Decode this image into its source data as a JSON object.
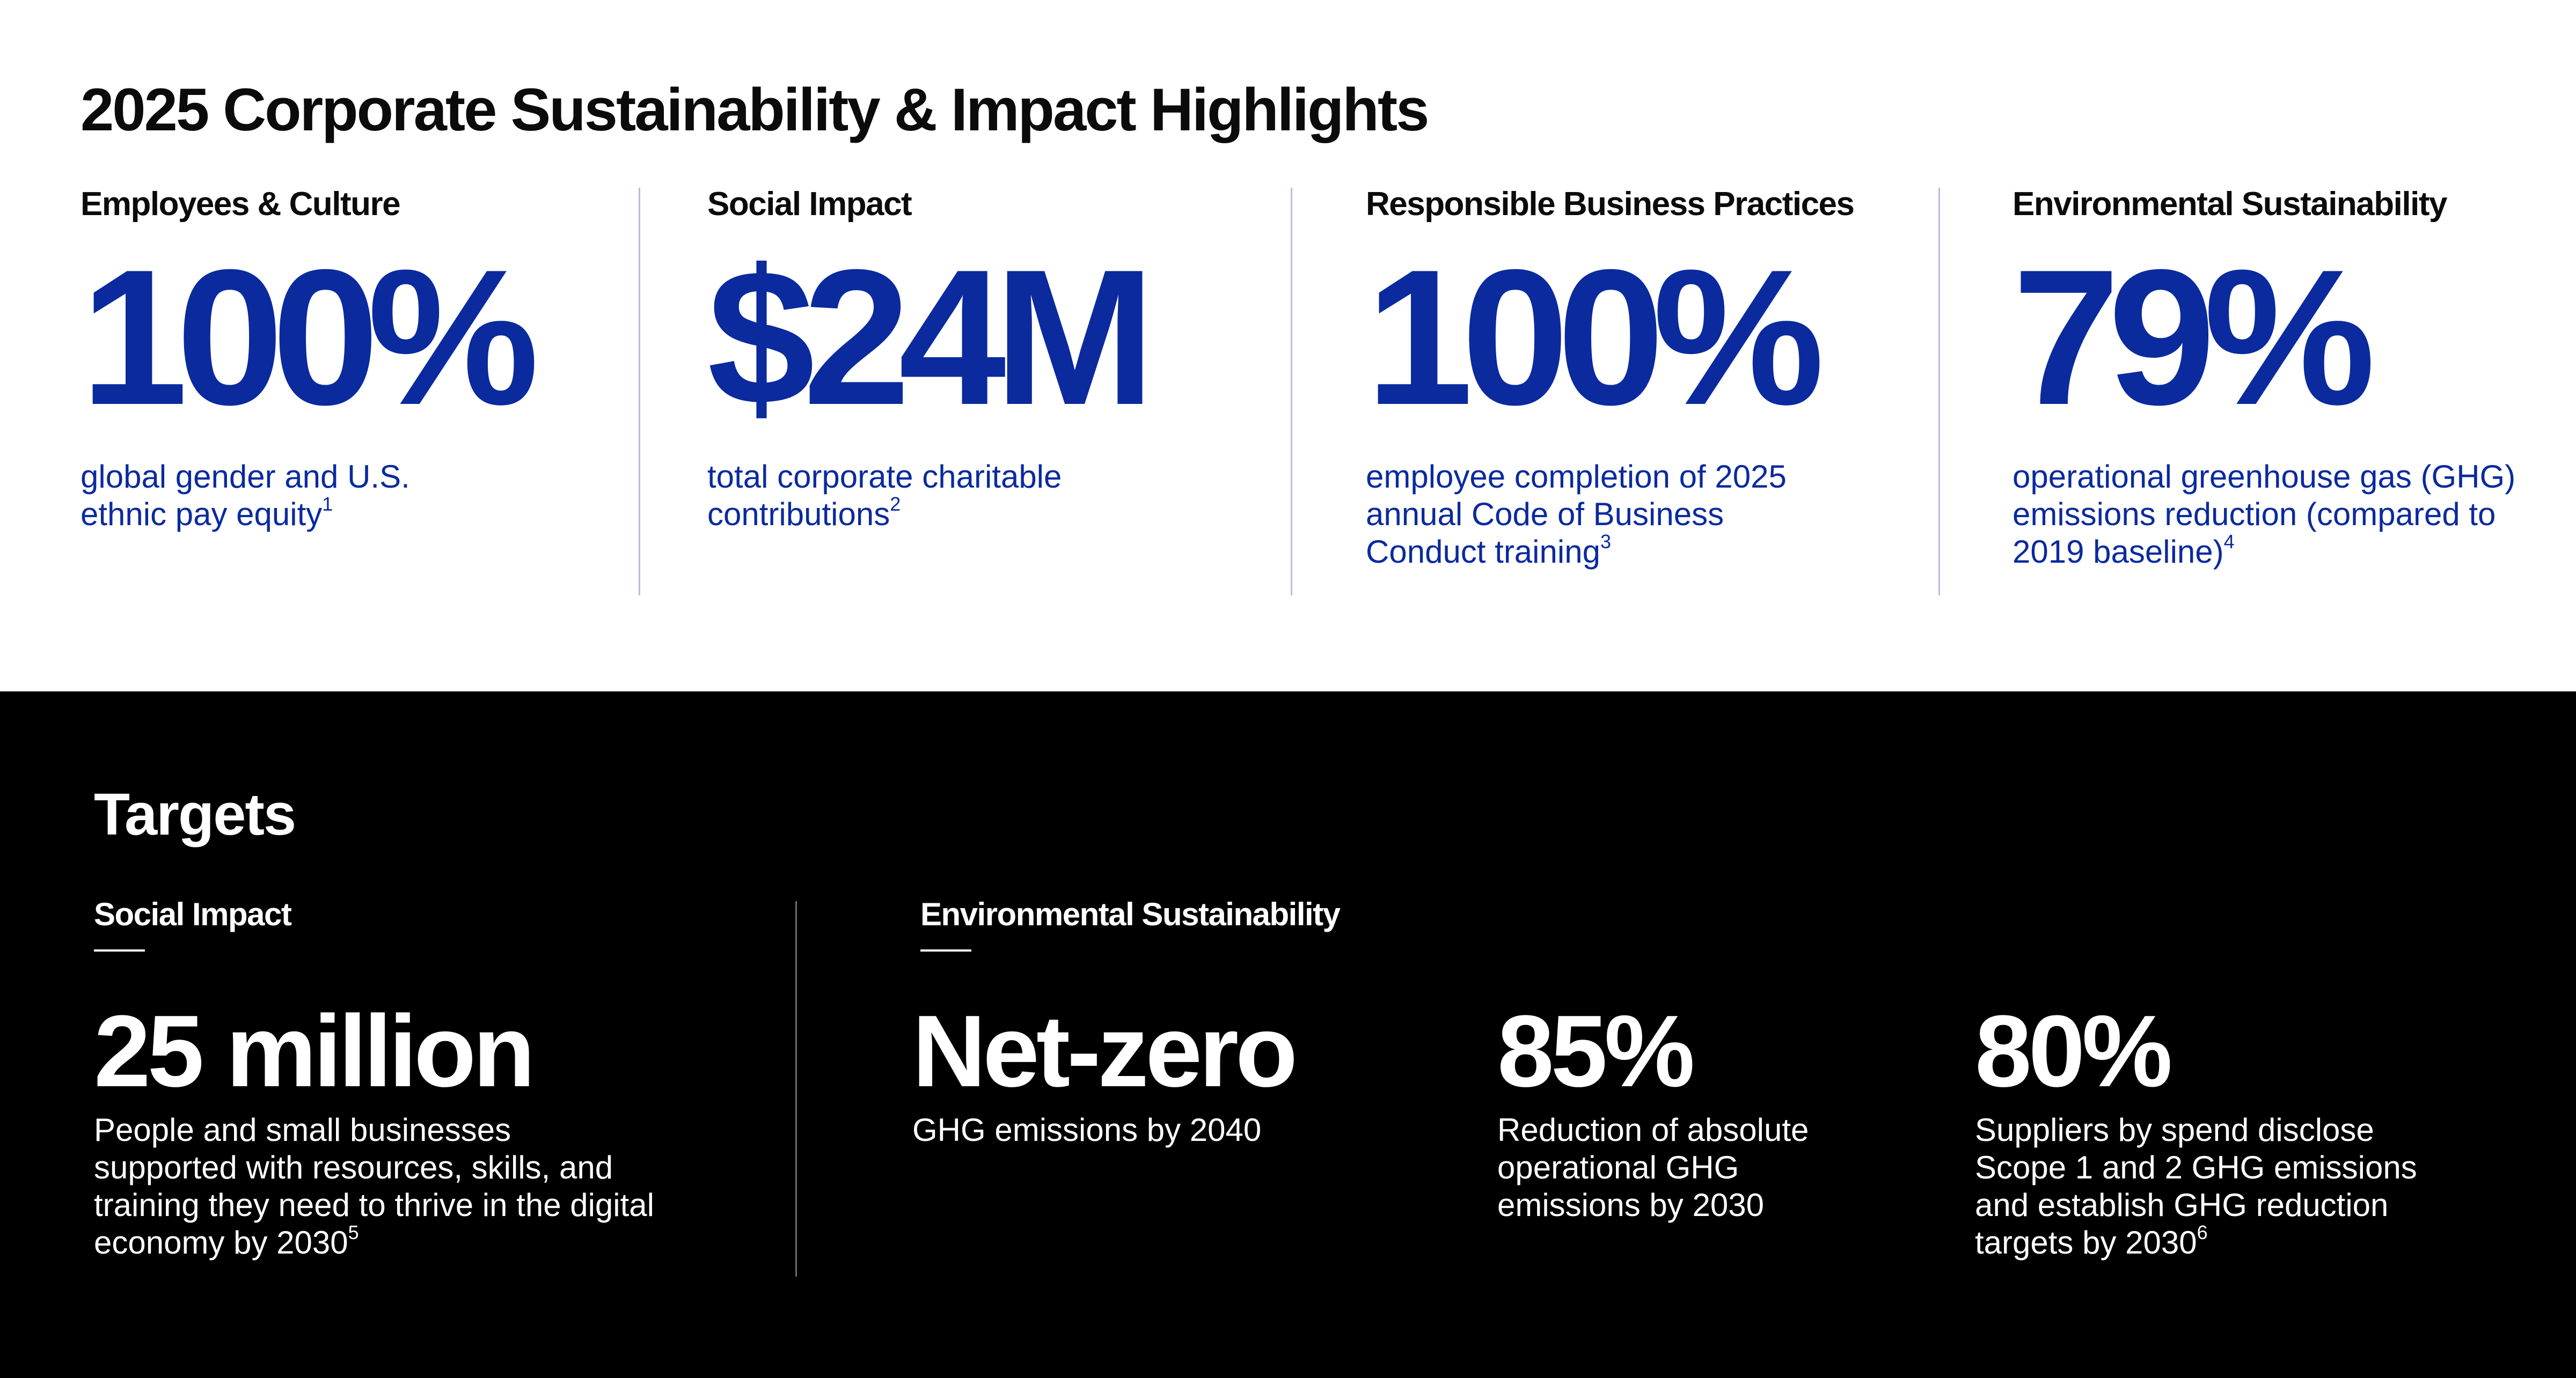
{
  "title": "2025 Corporate Sustainability & Impact Highlights",
  "highlights": [
    {
      "heading": "Employees & Culture",
      "value": "100%",
      "desc": "global gender and U.S. ethnic pay equity",
      "note": "1"
    },
    {
      "heading": "Social Impact",
      "value": "$24M",
      "desc": "total corporate charitable contributions",
      "note": "2"
    },
    {
      "heading": "Responsible Business Practices",
      "value": "100%",
      "desc": "employee completion of 2025 annual Code of Business Conduct training",
      "note": "3"
    },
    {
      "heading": "Environmental Sustainability",
      "value": "79%",
      "desc": "operational greenhouse gas (GHG) emissions reduction (compared to 2019 baseline)",
      "note": "4"
    }
  ],
  "targets": {
    "title": "Targets",
    "social": {
      "heading": "Social Impact",
      "items": [
        {
          "value": "25 million",
          "desc": "People and small businesses supported with resources, skills, and training they need to thrive in the digital economy by 2030",
          "note": "5"
        }
      ]
    },
    "environmental": {
      "heading": "Environmental Sustainability",
      "items": [
        {
          "value": "Net-zero",
          "desc": "GHG emissions by 2040",
          "note": ""
        },
        {
          "value": "85%",
          "desc": "Reduction of absolute operational GHG emissions by 2030",
          "note": ""
        },
        {
          "value": "80%",
          "desc": "Suppliers by spend disclose Scope 1 and 2 GHG emissions and establish GHG reduction targets by 2030",
          "note": "6"
        }
      ]
    }
  },
  "colors": {
    "accent_blue": "#0a2a9e",
    "dark_background": "#000000",
    "text_dark": "#0b0b0b"
  }
}
